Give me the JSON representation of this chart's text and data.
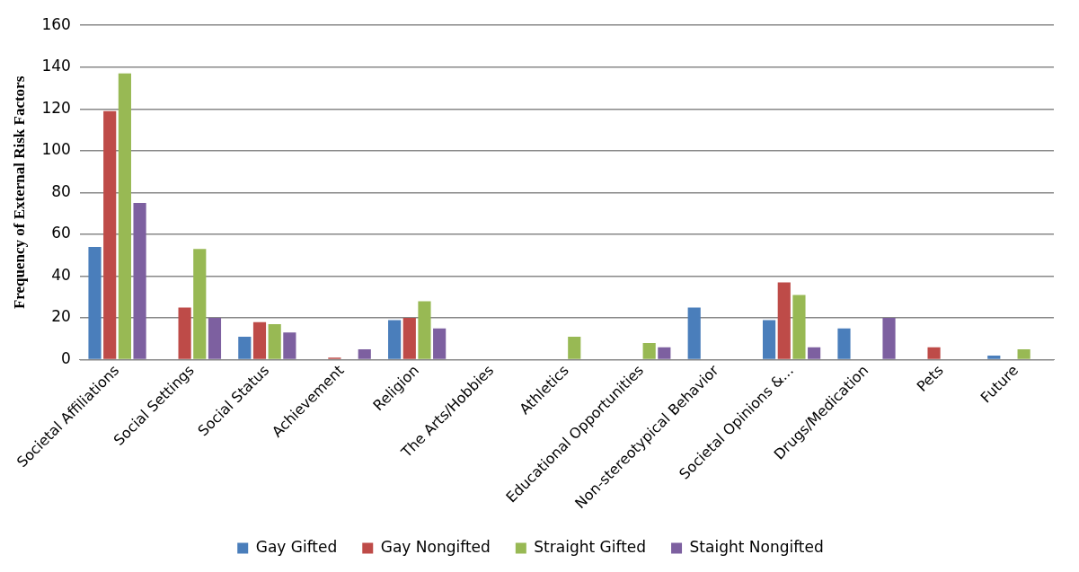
{
  "chart_data": {
    "type": "bar",
    "ylabel": "Frequency of External Risk Factors",
    "categories": [
      "Societal Affiliations",
      "Social Settings",
      "Social Status",
      "Achievement",
      "Religion",
      "The Arts/Hobbies",
      "Athletics",
      "Educational Opportunities",
      "Non-stereotypical Behavior",
      "Societal Opinions &...",
      "Drugs/Medication",
      "Pets",
      "Future"
    ],
    "series": [
      {
        "name": "Gay Gifted",
        "color": "#4a7ebb",
        "values": [
          54,
          0,
          11,
          0,
          19,
          0,
          0,
          0,
          25,
          19,
          15,
          0,
          2
        ]
      },
      {
        "name": "Gay Nongifted",
        "color": "#be4b48",
        "values": [
          119,
          25,
          18,
          1,
          20,
          0,
          0,
          0,
          0,
          37,
          0,
          6,
          0
        ]
      },
      {
        "name": "Straight Gifted",
        "color": "#98b954",
        "values": [
          137,
          53,
          17,
          0,
          28,
          0,
          11,
          8,
          0,
          31,
          0,
          0,
          5
        ]
      },
      {
        "name": "Staight Nongifted",
        "color": "#7d60a0",
        "values": [
          75,
          20,
          13,
          5,
          15,
          0,
          0,
          6,
          0,
          6,
          20,
          0,
          0
        ]
      }
    ],
    "ylim": [
      0,
      160
    ],
    "yticks": [
      0,
      20,
      40,
      60,
      80,
      100,
      120,
      140,
      160
    ],
    "grid": "y",
    "legend": "bottom"
  }
}
